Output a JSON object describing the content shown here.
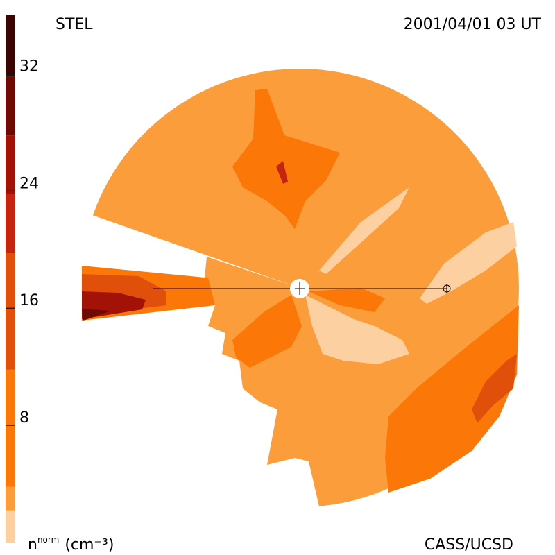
{
  "header": {
    "title": "STEL",
    "timestamp": "2001/04/01 03 UT"
  },
  "footer": {
    "credit": "CASS/UCSD"
  },
  "colorbar": {
    "range": [
      0,
      36
    ],
    "ticks": [
      8,
      16,
      24,
      32
    ],
    "label": {
      "base": "n",
      "sup": "norm",
      "unit": "(cm⁻³)"
    },
    "bands": [
      {
        "from": 0,
        "to": 2.2,
        "color": "#fdd0a2"
      },
      {
        "from": 2.2,
        "to": 3.8,
        "color": "#fb9d3a"
      },
      {
        "from": 3.8,
        "to": 11.8,
        "color": "#fb7708"
      },
      {
        "from": 11.8,
        "to": 19.8,
        "color": "#e0500a"
      },
      {
        "from": 19.8,
        "to": 23.8,
        "color": "#c42410"
      },
      {
        "from": 23.8,
        "to": 27.8,
        "color": "#a31206"
      },
      {
        "from": 27.8,
        "to": 31.8,
        "color": "#6e0a04"
      },
      {
        "from": 31.8,
        "to": 36,
        "color": "#3a0502"
      }
    ]
  }
}
